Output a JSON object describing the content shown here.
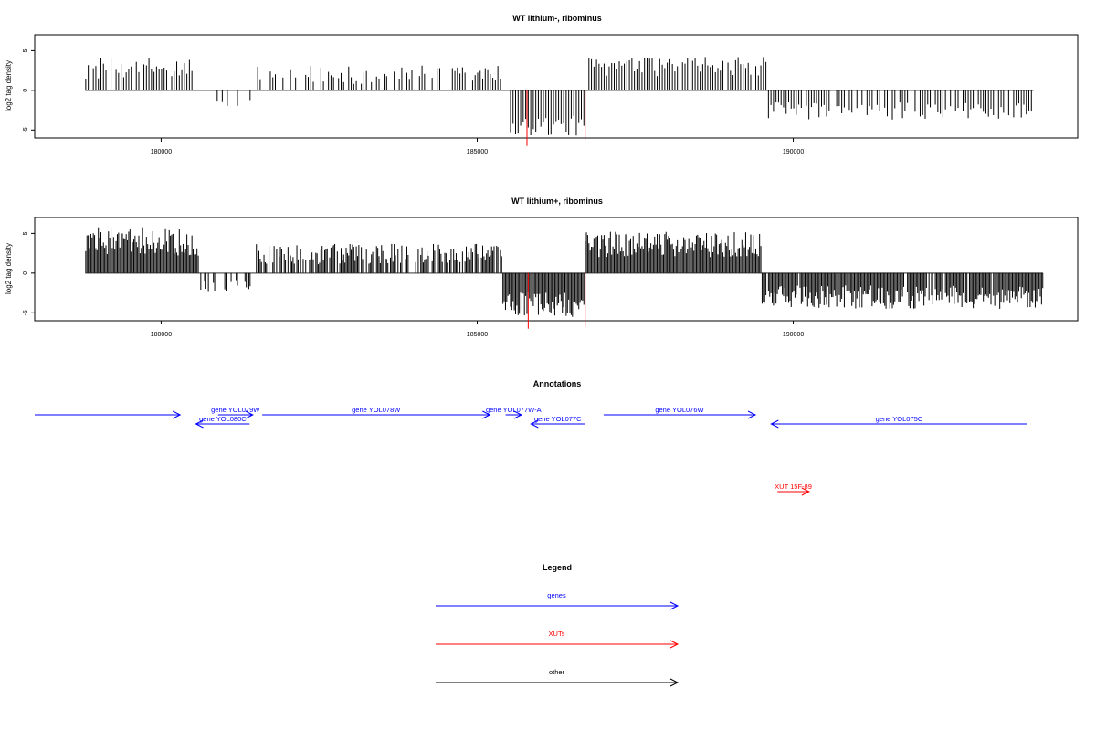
{
  "chart_data": [
    {
      "type": "bar",
      "title": "WT lithium-, ribominus",
      "ylabel": "log2 tag density",
      "xlim": [
        178000,
        194500
      ],
      "ylim": [
        -6,
        7
      ],
      "xticks": [
        180000,
        185000,
        190000
      ],
      "yticks": [
        -5,
        0,
        5
      ],
      "tick_labels_x": [
        "180000",
        "185000",
        "190000"
      ],
      "tick_labels_y": [
        "-5",
        "0",
        "5"
      ],
      "coverage": {
        "start": 178800,
        "end": 193800,
        "step": 40,
        "profile": [
          {
            "from": 178800,
            "to": 180500,
            "mean": 2.8,
            "amp": 1.4,
            "prob": 0.9
          },
          {
            "from": 180500,
            "to": 181500,
            "mean": -1.6,
            "amp": 0.8,
            "prob": 0.35
          },
          {
            "from": 181500,
            "to": 185500,
            "mean": 2.0,
            "amp": 1.2,
            "prob": 0.6
          },
          {
            "from": 185500,
            "to": 186700,
            "mean": -4.5,
            "amp": 1.3,
            "prob": 1.0
          },
          {
            "from": 186700,
            "to": 189600,
            "mean": 3.0,
            "amp": 1.2,
            "prob": 0.95
          },
          {
            "from": 189600,
            "to": 193800,
            "mean": -2.6,
            "amp": 1.1,
            "prob": 0.8
          }
        ],
        "highlight": [
          {
            "x": 185780,
            "value": -7.0,
            "color": "#ff0000"
          },
          {
            "x": 186700,
            "value": -6.2,
            "color": "#ff0000"
          }
        ]
      }
    },
    {
      "type": "bar",
      "title": "WT lithium+, ribominus",
      "ylabel": "log2 tag density",
      "xlim": [
        178000,
        194500
      ],
      "ylim": [
        -6,
        7
      ],
      "xticks": [
        180000,
        185000,
        190000
      ],
      "yticks": [
        -5,
        0,
        5
      ],
      "tick_labels_x": [
        "180000",
        "185000",
        "190000"
      ],
      "tick_labels_y": [
        "-5",
        "0",
        "5"
      ],
      "coverage": {
        "start": 178800,
        "end": 193950,
        "step": 20,
        "profile": [
          {
            "from": 178800,
            "to": 180600,
            "mean": 4.0,
            "amp": 1.8,
            "prob": 1.0
          },
          {
            "from": 180600,
            "to": 181500,
            "mean": -1.5,
            "amp": 0.9,
            "prob": 0.25
          },
          {
            "from": 181500,
            "to": 185400,
            "mean": 2.4,
            "amp": 1.3,
            "prob": 0.75
          },
          {
            "from": 185400,
            "to": 186700,
            "mean": -4.0,
            "amp": 1.6,
            "prob": 1.0
          },
          {
            "from": 186700,
            "to": 189500,
            "mean": 3.6,
            "amp": 1.6,
            "prob": 1.0
          },
          {
            "from": 189500,
            "to": 193950,
            "mean": -3.0,
            "amp": 1.5,
            "prob": 0.95
          }
        ],
        "highlight": [
          {
            "x": 185800,
            "value": -7.0,
            "color": "#ff0000"
          },
          {
            "x": 186700,
            "value": -6.8,
            "color": "#ff0000"
          }
        ]
      }
    }
  ],
  "annotations": {
    "title": "Annotations",
    "items": [
      {
        "label": "",
        "start": 178000,
        "end": 180300,
        "strand": "+",
        "row": 0,
        "color": "#0000ff"
      },
      {
        "label": "gene YOL079W",
        "start": 180900,
        "end": 181450,
        "strand": "+",
        "row": 0,
        "color": "#0000ff"
      },
      {
        "label": "gene YOL080C",
        "start": 180550,
        "end": 181400,
        "strand": "-",
        "row": 1,
        "color": "#0000ff"
      },
      {
        "label": "gene YOL078W",
        "start": 181600,
        "end": 185200,
        "strand": "+",
        "row": 0,
        "color": "#0000ff"
      },
      {
        "label": "gene YOL077W-A",
        "start": 185450,
        "end": 185700,
        "strand": "+",
        "row": 0,
        "color": "#0000ff"
      },
      {
        "label": "gene YOL077C",
        "start": 185850,
        "end": 186700,
        "strand": "-",
        "row": 1,
        "color": "#0000ff"
      },
      {
        "label": "gene YOL076W",
        "start": 187000,
        "end": 189400,
        "strand": "+",
        "row": 0,
        "color": "#0000ff"
      },
      {
        "label": "gene YOL075C",
        "start": 189650,
        "end": 193700,
        "strand": "-",
        "row": 1,
        "color": "#0000ff"
      },
      {
        "label": "XUT 15F-89",
        "start": 189750,
        "end": 190250,
        "strand": "+",
        "row": 2,
        "color": "#ff0000"
      }
    ]
  },
  "legend": {
    "title": "Legend",
    "entries": [
      {
        "label": "genes",
        "color": "#0000ff"
      },
      {
        "label": "XUTs",
        "color": "#ff0000"
      },
      {
        "label": "other",
        "color": "#000000"
      }
    ]
  }
}
